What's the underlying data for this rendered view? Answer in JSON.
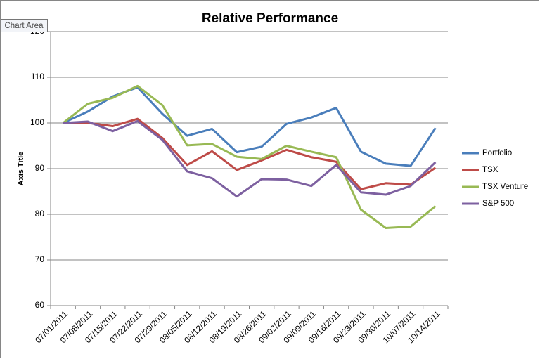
{
  "chart_data": {
    "type": "line",
    "title": "Relative Performance",
    "y_label": "Axis Title",
    "categories": [
      "07/01/2011",
      "07/08/2011",
      "07/15/2011",
      "07/22/2011",
      "07/29/2011",
      "08/05/2011",
      "08/12/2011",
      "08/19/2011",
      "08/26/2011",
      "09/02/2011",
      "09/09/2011",
      "09/16/2011",
      "09/23/2011",
      "09/30/2011",
      "10/07/2011",
      "10/14/2011"
    ],
    "series": [
      {
        "name": "Portfolio",
        "color": "#4a7ebb",
        "values": [
          100,
          102.5,
          105.8,
          107.8,
          102,
          97.2,
          98.7,
          93.6,
          94.8,
          99.8,
          101.2,
          103.3,
          93.7,
          91.1,
          90.6,
          98.9
        ]
      },
      {
        "name": "TSX",
        "color": "#be4b48",
        "values": [
          100,
          100,
          99.3,
          100.9,
          96.7,
          90.8,
          93.8,
          89.7,
          91.8,
          94.1,
          92.5,
          91.5,
          85.5,
          86.8,
          86.5,
          90.2
        ]
      },
      {
        "name": "TSX Venture",
        "color": "#98b954",
        "values": [
          100,
          104.2,
          105.5,
          108.1,
          103.9,
          95.1,
          95.4,
          92.6,
          92.1,
          95,
          93.7,
          92.5,
          81,
          77,
          77.3,
          81.8
        ]
      },
      {
        "name": "S&P 500",
        "color": "#7d60a0",
        "values": [
          100,
          100.3,
          98.2,
          100.4,
          96.3,
          89.4,
          87.9,
          83.9,
          87.7,
          87.6,
          86.2,
          90.8,
          84.8,
          84.3,
          86.2,
          91.4
        ]
      }
    ],
    "ylim": [
      60,
      120
    ],
    "yticks": [
      60,
      70,
      80,
      90,
      100,
      110,
      120
    ],
    "grid": true,
    "legend": "right"
  },
  "tooltip": "Chart Area"
}
